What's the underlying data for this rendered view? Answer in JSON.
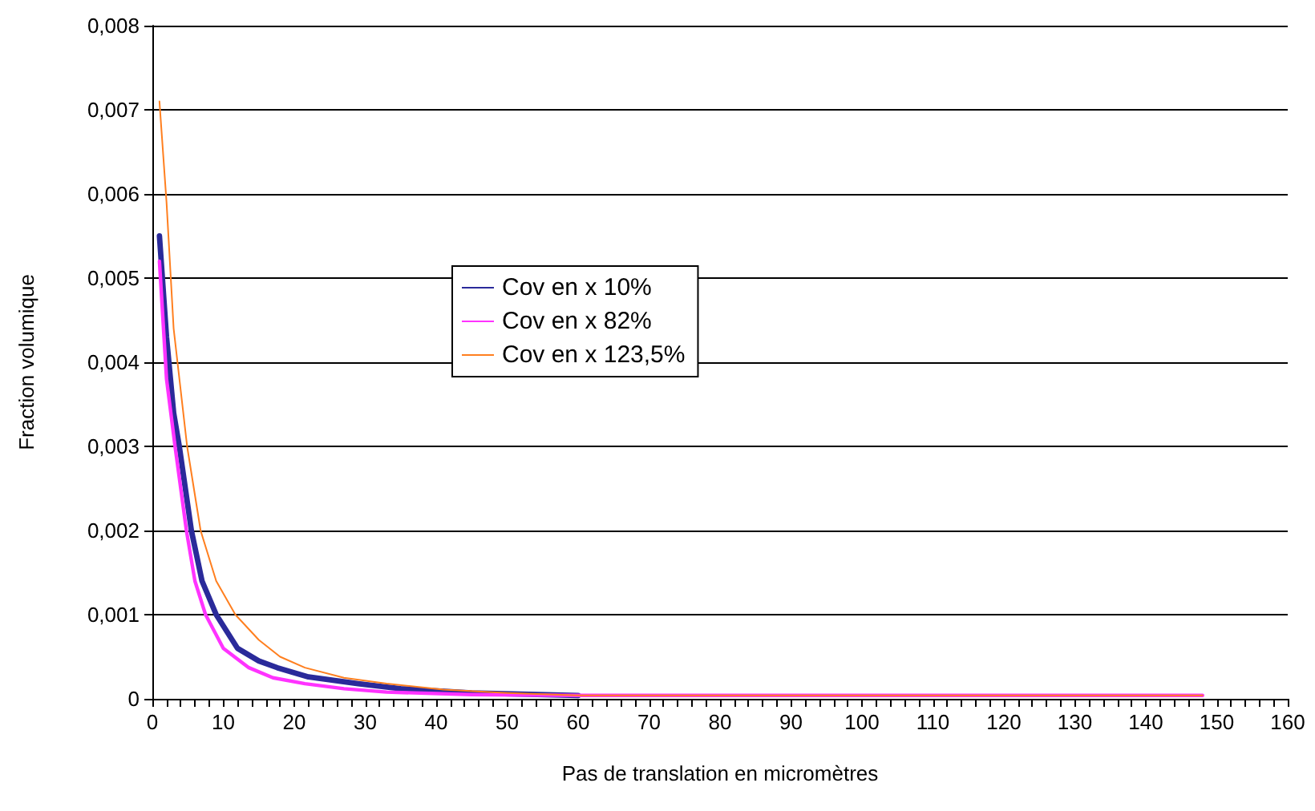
{
  "chart_data": {
    "type": "line",
    "xlabel": "Pas de translation en micromètres",
    "ylabel": "Fraction volumique",
    "xlim": [
      0,
      160
    ],
    "ylim": [
      0,
      0.008
    ],
    "xticks": [
      0,
      {
        "value": 2,
        "label": null
      },
      {
        "value": 4,
        "label": null
      },
      {
        "value": 6,
        "label": null
      },
      {
        "value": 8,
        "label": null
      },
      10,
      {
        "value": 12,
        "label": null
      },
      {
        "value": 14,
        "label": null
      },
      {
        "value": 16,
        "label": null
      },
      {
        "value": 18,
        "label": null
      },
      20,
      {
        "value": 22,
        "label": null
      },
      {
        "value": 24,
        "label": null
      },
      {
        "value": 26,
        "label": null
      },
      {
        "value": 28,
        "label": null
      },
      30,
      {
        "value": 32,
        "label": null
      },
      {
        "value": 34,
        "label": null
      },
      {
        "value": 36,
        "label": null
      },
      {
        "value": 38,
        "label": null
      },
      40,
      {
        "value": 42,
        "label": null
      },
      {
        "value": 44,
        "label": null
      },
      {
        "value": 46,
        "label": null
      },
      {
        "value": 48,
        "label": null
      },
      50,
      {
        "value": 52,
        "label": null
      },
      {
        "value": 54,
        "label": null
      },
      {
        "value": 56,
        "label": null
      },
      {
        "value": 58,
        "label": null
      },
      60,
      {
        "value": 62,
        "label": null
      },
      {
        "value": 64,
        "label": null
      },
      {
        "value": 66,
        "label": null
      },
      {
        "value": 68,
        "label": null
      },
      70,
      {
        "value": 72,
        "label": null
      },
      {
        "value": 74,
        "label": null
      },
      {
        "value": 76,
        "label": null
      },
      {
        "value": 78,
        "label": null
      },
      80,
      {
        "value": 82,
        "label": null
      },
      {
        "value": 84,
        "label": null
      },
      {
        "value": 86,
        "label": null
      },
      {
        "value": 88,
        "label": null
      },
      90,
      {
        "value": 92,
        "label": null
      },
      {
        "value": 94,
        "label": null
      },
      {
        "value": 96,
        "label": null
      },
      {
        "value": 98,
        "label": null
      },
      100,
      {
        "value": 102,
        "label": null
      },
      {
        "value": 104,
        "label": null
      },
      {
        "value": 106,
        "label": null
      },
      {
        "value": 108,
        "label": null
      },
      110,
      {
        "value": 112,
        "label": null
      },
      {
        "value": 114,
        "label": null
      },
      {
        "value": 116,
        "label": null
      },
      {
        "value": 118,
        "label": null
      },
      120,
      {
        "value": 122,
        "label": null
      },
      {
        "value": 124,
        "label": null
      },
      {
        "value": 126,
        "label": null
      },
      {
        "value": 128,
        "label": null
      },
      130,
      {
        "value": 132,
        "label": null
      },
      {
        "value": 134,
        "label": null
      },
      {
        "value": 136,
        "label": null
      },
      {
        "value": 138,
        "label": null
      },
      140,
      {
        "value": 142,
        "label": null
      },
      {
        "value": 144,
        "label": null
      },
      {
        "value": 146,
        "label": null
      },
      {
        "value": 148,
        "label": null
      },
      150,
      {
        "value": 152,
        "label": null
      },
      {
        "value": 154,
        "label": null
      },
      {
        "value": 156,
        "label": null
      },
      {
        "value": 158,
        "label": null
      },
      160
    ],
    "yticks": [
      {
        "value": 0,
        "label": "0"
      },
      {
        "value": 0.001,
        "label": "0,001"
      },
      {
        "value": 0.002,
        "label": "0,002"
      },
      {
        "value": 0.003,
        "label": "0,003"
      },
      {
        "value": 0.004,
        "label": "0,004"
      },
      {
        "value": 0.005,
        "label": "0,005"
      },
      {
        "value": 0.006,
        "label": "0,006"
      },
      {
        "value": 0.007,
        "label": "0,007"
      },
      {
        "value": 0.008,
        "label": "0,008"
      }
    ],
    "grid": "y",
    "legend": "left",
    "marker": "none",
    "line_style": "solid",
    "series": [
      {
        "name": "Cov en x 10%",
        "color": "#2a2a9a",
        "x": [
          1,
          2,
          3,
          3.8,
          5.5,
          7,
          9,
          12,
          15,
          17.6,
          22,
          29,
          35,
          45,
          60
        ],
        "values": [
          0.0055,
          0.0043,
          0.0034,
          0.003,
          0.002,
          0.0014,
          0.001,
          0.0006,
          0.00045,
          0.00037,
          0.00026,
          0.00018,
          0.00012,
          7e-05,
          4e-05
        ]
      },
      {
        "name": "Cov en x 82%",
        "color": "#ff33ff",
        "x": [
          1,
          2,
          3.2,
          4.8,
          6,
          7.5,
          10,
          13.6,
          17,
          21.5,
          27,
          33,
          45,
          60,
          148
        ],
        "values": [
          0.0052,
          0.0038,
          0.003,
          0.002,
          0.0014,
          0.001,
          0.0006,
          0.00037,
          0.00025,
          0.00018,
          0.00012,
          8e-05,
          5e-05,
          4e-05,
          4e-05
        ]
      },
      {
        "name": "Cov en x 123,5%",
        "color": "#ff7f1f",
        "x": [
          1,
          2,
          3,
          4.9,
          6.8,
          9,
          11.7,
          15,
          18,
          21.5,
          27,
          33,
          41,
          50,
          60,
          148
        ],
        "values": [
          0.0071,
          0.0059,
          0.0044,
          0.003,
          0.002,
          0.0014,
          0.001,
          0.0007,
          0.0005,
          0.00037,
          0.00025,
          0.00018,
          0.00011,
          7e-05,
          4e-05,
          4e-05
        ]
      }
    ]
  }
}
